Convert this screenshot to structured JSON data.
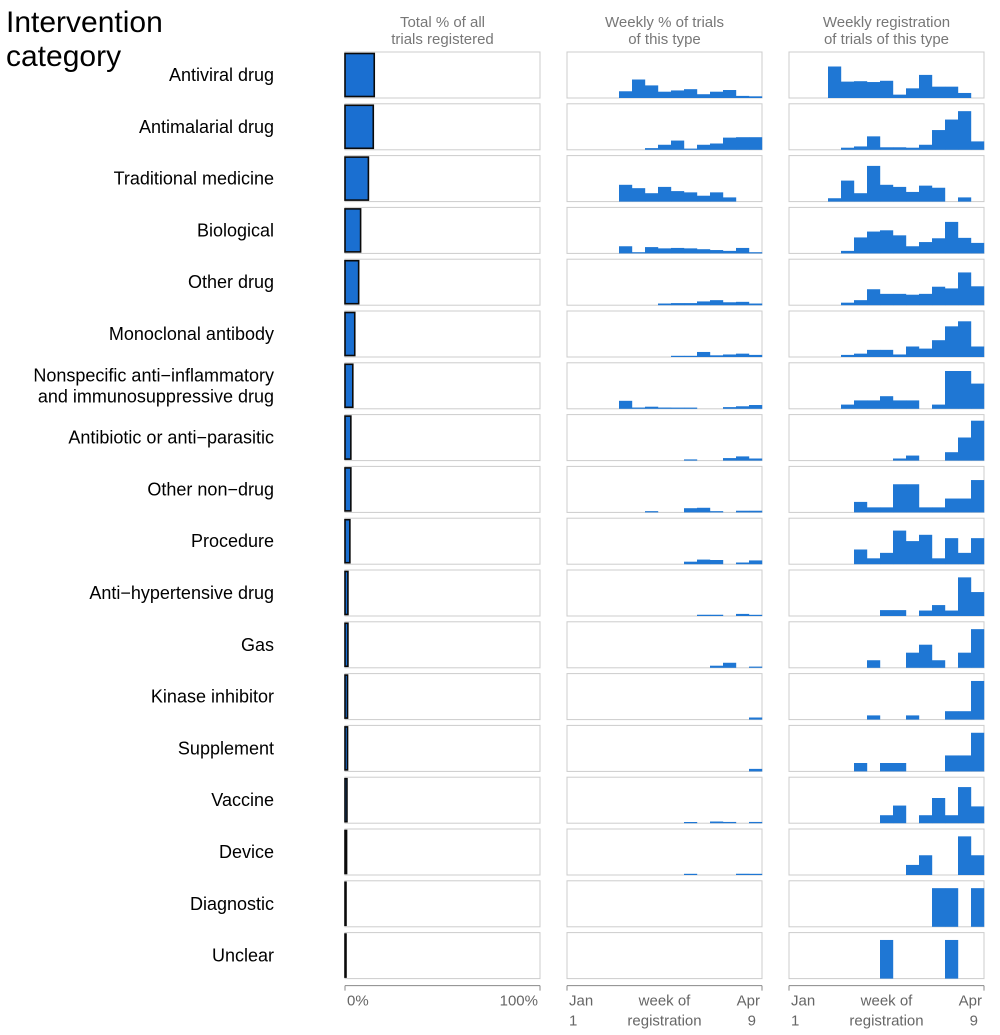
{
  "chart_data": {
    "type": "bar",
    "title": "Intervention category",
    "panels": [
      {
        "title_line1": "Total % of all",
        "title_line2": "trials registered",
        "ticks": [
          "0%",
          "100%"
        ]
      },
      {
        "title_line1": "Weekly % of trials",
        "title_line2": "of this type",
        "ticks": [
          "Jan",
          "1",
          "week of",
          "registration",
          "Apr",
          "9"
        ]
      },
      {
        "title_line1": "Weekly registration",
        "title_line2": "of trials of this type",
        "ticks": [
          "Jan",
          "1",
          "week of",
          "registration",
          "Apr",
          "9"
        ]
      }
    ],
    "week_count": 15,
    "xlim_total": [
      0,
      100
    ],
    "categories": [
      {
        "label": [
          "Antiviral drug"
        ],
        "total_pct": 15,
        "weekly_pct": [
          0,
          0,
          0,
          0,
          16,
          44,
          30,
          15,
          18,
          21,
          9,
          15,
          19,
          5,
          4
        ],
        "weekly_reg": [
          0,
          0,
          0,
          75,
          39,
          40,
          38,
          41,
          8,
          23,
          55,
          27,
          27,
          12,
          0
        ]
      },
      {
        "label": [
          "Antimalarial drug"
        ],
        "total_pct": 14.5,
        "weekly_pct": [
          0,
          0,
          0,
          0,
          0,
          0,
          4,
          12,
          22,
          2,
          12,
          15,
          29,
          30,
          30
        ],
        "weekly_reg": [
          0,
          0,
          0,
          0,
          5,
          8,
          32,
          6,
          6,
          5,
          12,
          47,
          72,
          92,
          20
        ]
      },
      {
        "label": [
          "Traditional medicine"
        ],
        "total_pct": 12,
        "weekly_pct": [
          0,
          0,
          0,
          0,
          40,
          32,
          20,
          35,
          25,
          22,
          14,
          22,
          10,
          0,
          0
        ],
        "weekly_reg": [
          0,
          0,
          0,
          8,
          50,
          20,
          85,
          40,
          35,
          23,
          38,
          33,
          0,
          10,
          0
        ]
      },
      {
        "label": [
          "Biological"
        ],
        "total_pct": 8,
        "weekly_pct": [
          0,
          0,
          0,
          0,
          17,
          2,
          15,
          12,
          13,
          12,
          10,
          8,
          6,
          13,
          2
        ],
        "weekly_reg": [
          0,
          0,
          0,
          0,
          6,
          38,
          52,
          55,
          43,
          17,
          27,
          36,
          75,
          37,
          25
        ]
      },
      {
        "label": [
          "Other drug"
        ],
        "total_pct": 7,
        "weekly_pct": [
          0,
          0,
          0,
          0,
          0,
          0,
          0,
          4,
          5,
          5,
          9,
          12,
          7,
          8,
          4
        ],
        "weekly_reg": [
          0,
          0,
          0,
          0,
          6,
          12,
          38,
          27,
          27,
          25,
          27,
          44,
          40,
          78,
          45
        ]
      },
      {
        "label": [
          "Monoclonal antibody"
        ],
        "total_pct": 5,
        "weekly_pct": [
          0,
          0,
          0,
          0,
          0,
          0,
          0,
          0,
          2,
          2,
          12,
          4,
          6,
          8,
          5
        ],
        "weekly_reg": [
          0,
          0,
          0,
          0,
          5,
          8,
          17,
          17,
          6,
          25,
          20,
          40,
          73,
          85,
          25
        ]
      },
      {
        "label": [
          "Nonspecific anti−inflammatory",
          "and immunosuppressive drug"
        ],
        "total_pct": 4,
        "weekly_pct": [
          0,
          0,
          0,
          0,
          19,
          3,
          5,
          3,
          2,
          2,
          0,
          0,
          4,
          6,
          9
        ],
        "weekly_reg": [
          0,
          0,
          0,
          0,
          10,
          20,
          20,
          30,
          20,
          20,
          0,
          10,
          90,
          90,
          60
        ]
      },
      {
        "label": [
          "Antibiotic or anti−parasitic"
        ],
        "total_pct": 3,
        "weekly_pct": [
          0,
          0,
          0,
          0,
          0,
          0,
          0,
          0,
          0,
          2,
          0,
          0,
          6,
          10,
          5
        ],
        "weekly_reg": [
          0,
          0,
          0,
          0,
          0,
          0,
          0,
          0,
          5,
          12,
          0,
          0,
          20,
          55,
          95
        ]
      },
      {
        "label": [
          "Other non−drug"
        ],
        "total_pct": 3,
        "weekly_pct": [
          0,
          0,
          0,
          0,
          0,
          0,
          3,
          0,
          0,
          10,
          11,
          3,
          0,
          4,
          4
        ],
        "weekly_reg": [
          0,
          0,
          0,
          0,
          0,
          25,
          12,
          12,
          67,
          67,
          12,
          12,
          33,
          33,
          77
        ]
      },
      {
        "label": [
          "Procedure"
        ],
        "total_pct": 2.5,
        "weekly_pct": [
          0,
          0,
          0,
          0,
          0,
          0,
          0,
          0,
          0,
          6,
          11,
          10,
          0,
          4,
          9
        ],
        "weekly_reg": [
          0,
          0,
          0,
          0,
          0,
          35,
          14,
          27,
          80,
          55,
          70,
          14,
          62,
          27,
          62
        ]
      },
      {
        "label": [
          "Anti−hypertensive drug"
        ],
        "total_pct": 1.5,
        "weekly_pct": [
          0,
          0,
          0,
          0,
          0,
          0,
          0,
          0,
          0,
          0,
          3,
          3,
          0,
          5,
          2
        ],
        "weekly_reg": [
          0,
          0,
          0,
          0,
          0,
          0,
          0,
          14,
          14,
          0,
          13,
          26,
          13,
          92,
          57
        ]
      },
      {
        "label": [
          "Gas"
        ],
        "total_pct": 1.5,
        "weekly_pct": [
          0,
          0,
          0,
          0,
          0,
          0,
          0,
          0,
          0,
          0,
          0,
          5,
          12,
          0,
          2
        ],
        "weekly_reg": [
          0,
          0,
          0,
          0,
          0,
          0,
          18,
          0,
          0,
          36,
          55,
          18,
          0,
          36,
          92
        ]
      },
      {
        "label": [
          "Kinase inhibitor"
        ],
        "total_pct": 1.3,
        "weekly_pct": [
          0,
          0,
          0,
          0,
          0,
          0,
          0,
          0,
          0,
          0,
          0,
          0,
          0,
          0,
          5
        ],
        "weekly_reg": [
          0,
          0,
          0,
          0,
          0,
          0,
          10,
          0,
          0,
          10,
          0,
          0,
          20,
          20,
          92
        ]
      },
      {
        "label": [
          "Supplement"
        ],
        "total_pct": 1.3,
        "weekly_pct": [
          0,
          0,
          0,
          0,
          0,
          0,
          0,
          0,
          0,
          0,
          0,
          0,
          0,
          0,
          6
        ],
        "weekly_reg": [
          0,
          0,
          0,
          0,
          0,
          20,
          0,
          20,
          20,
          0,
          0,
          0,
          38,
          38,
          92
        ]
      },
      {
        "label": [
          "Vaccine"
        ],
        "total_pct": 1,
        "weekly_pct": [
          0,
          0,
          0,
          0,
          0,
          0,
          0,
          0,
          0,
          2,
          0,
          4,
          3,
          0,
          3
        ],
        "weekly_reg": [
          0,
          0,
          0,
          0,
          0,
          0,
          0,
          19,
          42,
          0,
          19,
          60,
          19,
          86,
          40
        ]
      },
      {
        "label": [
          "Device"
        ],
        "total_pct": 0.8,
        "weekly_pct": [
          0,
          0,
          0,
          0,
          0,
          0,
          0,
          0,
          0,
          2,
          0,
          0,
          0,
          3,
          2
        ],
        "weekly_reg": [
          0,
          0,
          0,
          0,
          0,
          0,
          0,
          0,
          0,
          24,
          47,
          0,
          0,
          92,
          47
        ]
      },
      {
        "label": [
          "Diagnostic"
        ],
        "total_pct": 0.3,
        "weekly_pct": [
          0,
          0,
          0,
          0,
          0,
          0,
          0,
          0,
          0,
          0,
          0,
          0,
          0,
          0,
          0
        ],
        "weekly_reg": [
          0,
          0,
          0,
          0,
          0,
          0,
          0,
          0,
          0,
          0,
          0,
          92,
          92,
          0,
          92
        ]
      },
      {
        "label": [
          "Unclear"
        ],
        "total_pct": 0.2,
        "weekly_pct": [
          0,
          0,
          0,
          0,
          0,
          0,
          0,
          0,
          0,
          0,
          0,
          0,
          0,
          0,
          0
        ],
        "weekly_reg": [
          0,
          0,
          0,
          0,
          0,
          0,
          0,
          92,
          0,
          0,
          0,
          0,
          92,
          0,
          0
        ]
      }
    ]
  },
  "colors": {
    "bar_fill": "#1f77d4",
    "total_bar_fill": "#1a6fd1",
    "total_bar_stroke": "#0a0a0a",
    "panel_border": "#cccccc",
    "axis": "#888888",
    "label_text": "#000000",
    "tick_text": "#666666"
  }
}
